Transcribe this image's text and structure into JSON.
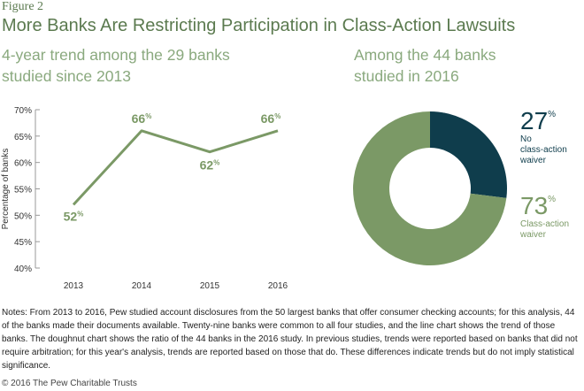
{
  "figure_label": "Figure 2",
  "title": "More Banks Are Restricting Participation in Class-Action Lawsuits",
  "left_subtitle": "4-year trend among the 29 banks studied since 2013",
  "right_subtitle": "Among the 44 banks studied in 2016",
  "notes": "Notes: From 2013 to 2016, Pew studied account disclosures from the 50 largest banks that offer consumer checking accounts; for this analysis, 44 of the banks made their documents available. Twenty-nine banks were common to all four studies, and the line chart shows the trend of those banks. The doughnut chart shows the ratio of the 44 banks in the 2016 study. In previous studies, trends were reported based on banks that did not require arbitration; for this year's analysis, trends are reported based on those that do. These differences indicate trends but do not imply statistical significance.",
  "copyright": "© 2016 The Pew Charitable Trusts",
  "colors": {
    "green": "#7b9966",
    "dark_teal": "#0f3d4c",
    "title_green": "#5b7a4f"
  },
  "chart_data": [
    {
      "type": "line",
      "categories": [
        "2013",
        "2014",
        "2015",
        "2016"
      ],
      "series": [
        {
          "values": [
            52,
            66,
            62,
            66
          ]
        }
      ],
      "data_labels": [
        "52",
        "66",
        "62",
        "66"
      ],
      "data_label_suffix": "%",
      "ylabel": "Percentage of banks",
      "ylim": [
        40,
        70
      ],
      "yticks": [
        "40%",
        "45%",
        "50%",
        "55%",
        "60%",
        "65%",
        "70%"
      ],
      "grid": false
    },
    {
      "type": "pie",
      "donut": true,
      "slices": [
        {
          "label": "No class-action waiver",
          "value": 27,
          "display": "27",
          "color": "#0f3d4c"
        },
        {
          "label": "Class-action waiver",
          "value": 73,
          "display": "73",
          "color": "#7b9966"
        }
      ],
      "value_suffix": "%"
    }
  ]
}
